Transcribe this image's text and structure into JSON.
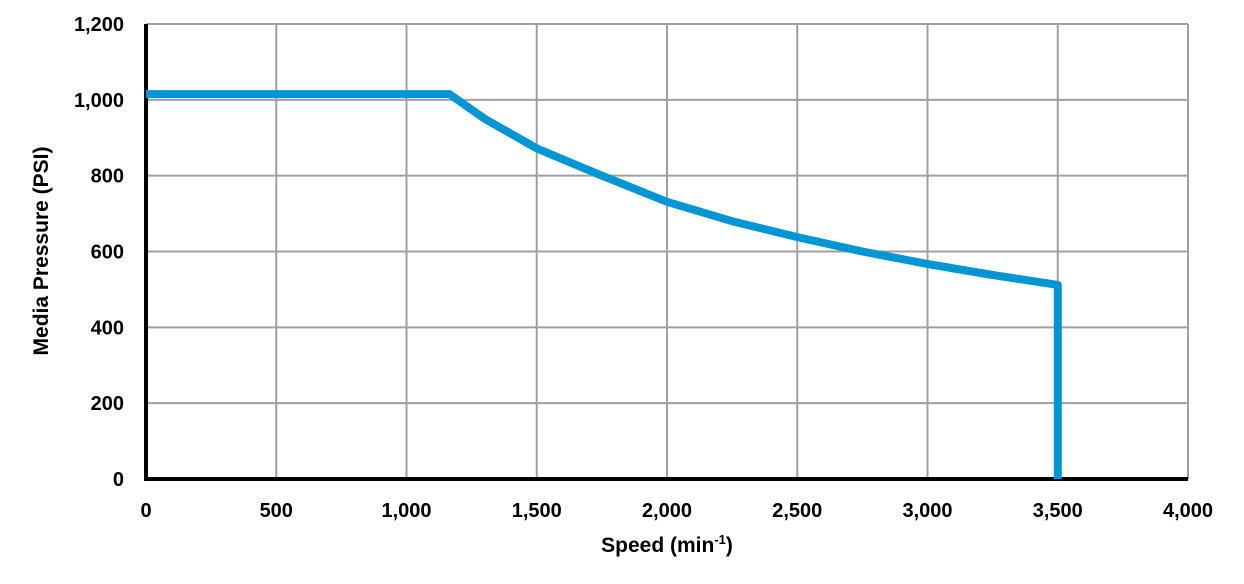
{
  "chart_data": {
    "type": "line",
    "title": "",
    "xlabel": "Speed (min-1)",
    "xlabel_parts": {
      "base": "Speed (min",
      "sup": "-1",
      "close": ")"
    },
    "ylabel": "Media Pressure (PSI)",
    "xlim": [
      0,
      4000
    ],
    "ylim": [
      0,
      1200
    ],
    "grid": true,
    "legend": null,
    "x_ticks": [
      0,
      500,
      1000,
      1500,
      2000,
      2500,
      3000,
      3500,
      4000
    ],
    "x_tick_labels": [
      "0",
      "500",
      "1,000",
      "1,500",
      "2,000",
      "2,500",
      "3,000",
      "3,500",
      "4,000"
    ],
    "y_ticks": [
      0,
      200,
      400,
      600,
      800,
      1000,
      1200
    ],
    "y_tick_labels": [
      "0",
      "200",
      "400",
      "600",
      "800",
      "1,000",
      "1,200"
    ],
    "series": [
      {
        "name": "Media Pressure",
        "color": "#0096D6",
        "x": [
          0,
          1165,
          1300,
          1500,
          1750,
          2000,
          2250,
          2500,
          2750,
          3000,
          3250,
          3500,
          3500
        ],
        "y": [
          1015,
          1015,
          950,
          872,
          800,
          731,
          680,
          638,
          600,
          567,
          538,
          512,
          0
        ]
      }
    ]
  },
  "colors": {
    "line": "#0096D6",
    "grid": "#A0A0A0",
    "axis": "#000000"
  }
}
